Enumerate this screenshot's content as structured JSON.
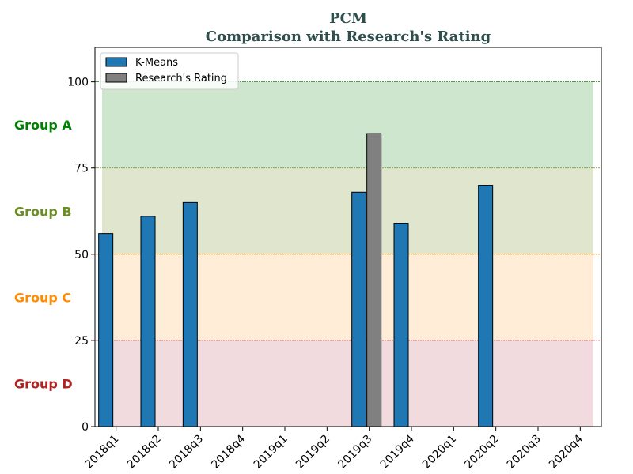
{
  "chart_data": {
    "type": "bar",
    "title": "PCM",
    "subtitle": "Comparison with Research's Rating",
    "title_color": "#2f4f4f",
    "xlabel": "",
    "ylabel": "",
    "ylim": [
      0,
      110
    ],
    "yticks": [
      "0",
      "25",
      "50",
      "75",
      "100"
    ],
    "categories": [
      "2018q1",
      "2018q2",
      "2018q3",
      "2018q4",
      "2019q1",
      "2019q2",
      "2019q3",
      "2019q4",
      "2020q1",
      "2020q2",
      "2020q3",
      "2020q4"
    ],
    "series": [
      {
        "name": "K-Means",
        "color": "#1f77b4",
        "values": [
          56,
          61,
          65,
          null,
          null,
          null,
          68,
          59,
          null,
          70,
          null,
          null
        ]
      },
      {
        "name": "Research's Rating",
        "color": "#808080",
        "values": [
          null,
          null,
          null,
          null,
          null,
          null,
          85,
          null,
          null,
          null,
          null,
          null
        ]
      }
    ],
    "legend_position": "top-left",
    "grid": false,
    "bands": [
      {
        "label": "Group A",
        "from": 75,
        "to": 100,
        "fill": "#90c890",
        "text_color": "#008000",
        "line_color": "#008000"
      },
      {
        "label": "Group B",
        "from": 50,
        "to": 75,
        "fill": "#b8c890",
        "text_color": "#6b8e23",
        "line_color": "#6b8e23"
      },
      {
        "label": "Group C",
        "from": 25,
        "to": 50,
        "fill": "#ffd8a8",
        "text_color": "#ff8c00",
        "line_color": "#ff8c00"
      },
      {
        "label": "Group D",
        "from": 0,
        "to": 25,
        "fill": "#e0b0b8",
        "text_color": "#b22222",
        "line_color": "#b22222"
      }
    ]
  }
}
